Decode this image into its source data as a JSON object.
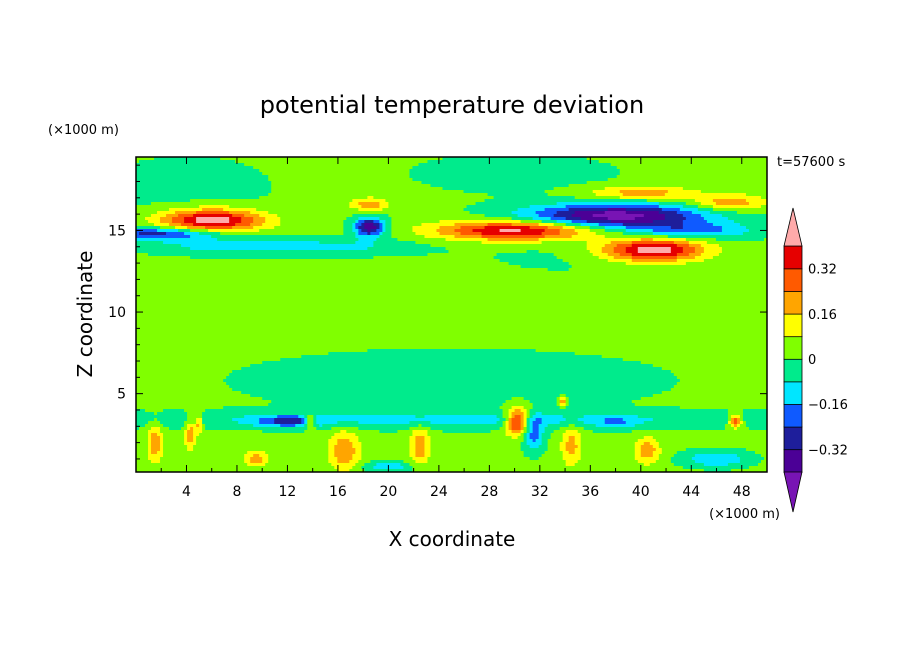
{
  "chart_data": {
    "type": "heatmap",
    "title": "potential temperature deviation",
    "xlabel": "X coordinate",
    "ylabel": "Z coordinate",
    "x_unit": "(×1000 m)",
    "y_unit": "(×1000 m)",
    "time_label": "t=57600 s",
    "xlim": [
      0,
      50
    ],
    "ylim": [
      0.2,
      19.5
    ],
    "x_ticks": [
      4,
      8,
      12,
      16,
      20,
      24,
      28,
      32,
      36,
      40,
      44,
      48
    ],
    "y_ticks": [
      5,
      10,
      15
    ],
    "colorbar": {
      "levels": [
        -0.4,
        -0.32,
        -0.24,
        -0.16,
        -0.08,
        0,
        0.08,
        0.16,
        0.24,
        0.32,
        0.4
      ],
      "labels": [
        "0.32",
        "0.16",
        "0",
        "−0.16",
        "−0.32"
      ],
      "label_values": [
        0.32,
        0.16,
        0,
        -0.16,
        -0.32
      ],
      "colors": [
        "#4b0096",
        "#1e1e9b",
        "#0f5aff",
        "#00e6ff",
        "#00eb8c",
        "#80ff00",
        "#ffff00",
        "#ffa500",
        "#ff5a00",
        "#e60000"
      ],
      "under_color": "#7814b4",
      "over_color": "#ffaaaa"
    },
    "background_value": 0.02,
    "features": [
      {
        "x": 6,
        "z": 15.6,
        "sx": 4,
        "sz": 0.7,
        "v": 0.46
      },
      {
        "x": 2,
        "z": 14.8,
        "sx": 5,
        "sz": 0.4,
        "v": -0.3
      },
      {
        "x": 7,
        "z": 14.0,
        "sx": 6,
        "sz": 0.5,
        "v": -0.12
      },
      {
        "x": 16,
        "z": 14.0,
        "sx": 6,
        "sz": 0.5,
        "v": -0.11
      },
      {
        "x": 18.5,
        "z": 15.2,
        "sx": 1.2,
        "sz": 0.6,
        "v": -0.4
      },
      {
        "x": 18.5,
        "z": 16.6,
        "sx": 1.5,
        "sz": 0.4,
        "v": 0.2
      },
      {
        "x": 30,
        "z": 15.0,
        "sx": 6,
        "sz": 0.6,
        "v": 0.42
      },
      {
        "x": 38,
        "z": 15.9,
        "sx": 7,
        "sz": 0.7,
        "v": -0.46
      },
      {
        "x": 41,
        "z": 13.8,
        "sx": 4,
        "sz": 0.7,
        "v": 0.46
      },
      {
        "x": 44,
        "z": 15.0,
        "sx": 5,
        "sz": 0.5,
        "v": -0.2
      },
      {
        "x": 40,
        "z": 17.3,
        "sx": 4,
        "sz": 0.4,
        "v": 0.2
      },
      {
        "x": 47,
        "z": 16.7,
        "sx": 3,
        "sz": 0.5,
        "v": 0.2
      },
      {
        "x": 36,
        "z": 13.5,
        "sx": 12,
        "sz": 1.6,
        "v": -0.03
      },
      {
        "x": 4,
        "z": 17.5,
        "sx": 8,
        "sz": 2.5,
        "v": -0.04
      },
      {
        "x": 30,
        "z": 18.5,
        "sx": 10,
        "sz": 1.5,
        "v": -0.04
      },
      {
        "x": 25,
        "z": 5.8,
        "sx": 20,
        "sz": 2.2,
        "v": -0.045
      },
      {
        "x": 25,
        "z": 3.4,
        "sx": 30,
        "sz": 0.5,
        "v": -0.12
      },
      {
        "x": 12,
        "z": 3.3,
        "sx": 2.5,
        "sz": 0.35,
        "v": -0.2
      },
      {
        "x": 31.5,
        "z": 2.5,
        "sx": 0.8,
        "sz": 1.0,
        "v": -0.22
      },
      {
        "x": 46,
        "z": 1.0,
        "sx": 2.5,
        "sz": 0.5,
        "v": -0.18
      },
      {
        "x": 20,
        "z": 0.5,
        "sx": 2,
        "sz": 0.3,
        "v": -0.16
      },
      {
        "x": 1.5,
        "z": 2.0,
        "sx": 0.6,
        "sz": 1.2,
        "v": 0.2
      },
      {
        "x": 4.3,
        "z": 2.5,
        "sx": 0.4,
        "sz": 1.0,
        "v": 0.2
      },
      {
        "x": 5,
        "z": 3.2,
        "sx": 0.3,
        "sz": 0.6,
        "v": 0.22
      },
      {
        "x": 9.5,
        "z": 1.0,
        "sx": 1.0,
        "sz": 0.5,
        "v": 0.18
      },
      {
        "x": 13.8,
        "z": 3.3,
        "sx": 0.4,
        "sz": 0.4,
        "v": 0.3
      },
      {
        "x": 16.5,
        "z": 1.5,
        "sx": 1.2,
        "sz": 1.2,
        "v": 0.22
      },
      {
        "x": 22.5,
        "z": 1.8,
        "sx": 0.8,
        "sz": 1.2,
        "v": 0.2
      },
      {
        "x": 30.2,
        "z": 3.3,
        "sx": 0.9,
        "sz": 0.8,
        "v": 0.42
      },
      {
        "x": 34.5,
        "z": 1.8,
        "sx": 0.8,
        "sz": 1.2,
        "v": 0.18
      },
      {
        "x": 40.5,
        "z": 1.5,
        "sx": 1.0,
        "sz": 0.8,
        "v": 0.2
      },
      {
        "x": 47.5,
        "z": 3.3,
        "sx": 0.5,
        "sz": 0.4,
        "v": 0.34
      },
      {
        "x": 33.8,
        "z": 4.5,
        "sx": 0.3,
        "sz": 0.25,
        "v": 0.22
      },
      {
        "x": 38,
        "z": 3.2,
        "sx": 1.5,
        "sz": 0.4,
        "v": -0.12
      }
    ]
  }
}
